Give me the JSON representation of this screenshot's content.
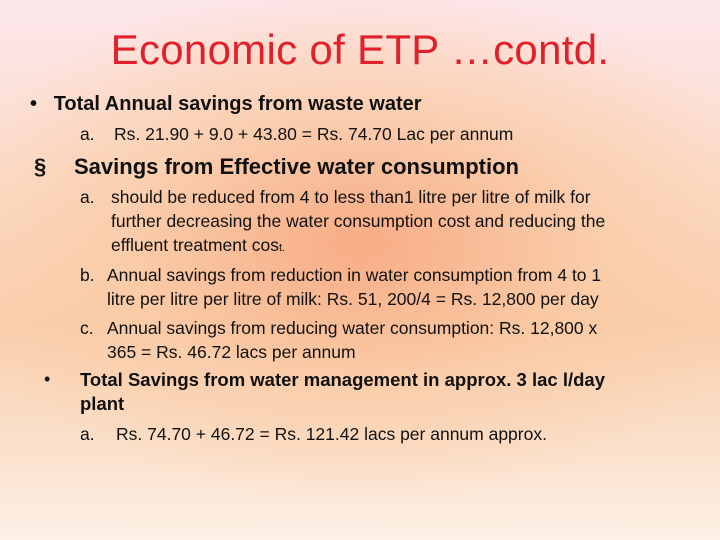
{
  "slide": {
    "title": "Economic of ETP …contd.",
    "bullet1": {
      "marker": "•",
      "text": "Total Annual savings from waste water",
      "item_a": {
        "marker": "a.",
        "text": "Rs. 21.90 + 9.0 + 43.80 = Rs. 74.70 Lac per annum"
      }
    },
    "bullet2": {
      "marker": "§",
      "text": "Savings from Effective water consumption",
      "item_a": {
        "marker": "a.",
        "line1": "should be reduced from 4 to  less than1 litre per litre of milk for",
        "line2": "further decreasing the water consumption cost and reducing the",
        "line3_main": "effluent treatment cos",
        "line3_small": "t."
      },
      "item_b": {
        "marker": "b.",
        "line1": "Annual savings from reduction in water consumption from 4 to 1",
        "line2": "litre per litre per litre of milk: Rs. 51, 200/4 = Rs. 12,800 per day"
      },
      "item_c": {
        "marker": "c.",
        "line1": "Annual savings from reducing water consumption: Rs. 12,800 x",
        "line2": "365 = Rs. 46.72 lacs per annum"
      }
    },
    "bullet3": {
      "marker": "•",
      "line1": "Total Savings from water management in approx. 3 lac l/day",
      "line2": "plant",
      "item_a": {
        "marker": "a.",
        "text": "Rs. 74.70 + 46.72 = Rs. 121.42 lacs per annum approx."
      }
    }
  }
}
